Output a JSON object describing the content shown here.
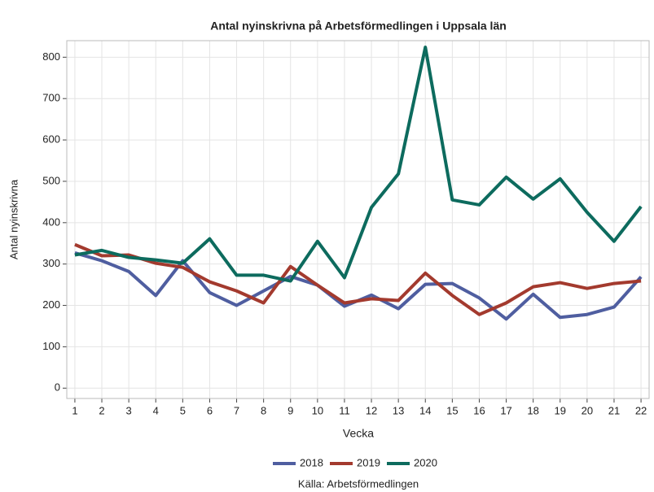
{
  "chart_data": {
    "type": "line",
    "title": "Antal nyinskrivna på Arbetsförmedlingen i Uppsala län",
    "x_label": "Vecka",
    "y_label": "Antal nyinskrivna",
    "source": "Källa: Arbetsförmedlingen",
    "x": [
      1,
      2,
      3,
      4,
      5,
      6,
      7,
      8,
      9,
      10,
      11,
      12,
      13,
      14,
      15,
      16,
      17,
      18,
      19,
      20,
      21,
      22
    ],
    "series": [
      {
        "name": "2018",
        "color": "#4f5ea0",
        "values": [
          327,
          308,
          282,
          224,
          308,
          231,
          200,
          235,
          270,
          249,
          198,
          225,
          192,
          251,
          253,
          218,
          167,
          227,
          171,
          178,
          196,
          269
        ]
      },
      {
        "name": "2019",
        "color": "#a33a2e",
        "values": [
          347,
          320,
          322,
          302,
          292,
          257,
          235,
          206,
          294,
          249,
          206,
          216,
          212,
          278,
          224,
          178,
          206,
          245,
          255,
          241,
          253,
          259
        ]
      },
      {
        "name": "2020",
        "color": "#0d6b5e",
        "values": [
          322,
          333,
          316,
          310,
          302,
          361,
          273,
          273,
          259,
          355,
          267,
          437,
          518,
          824,
          455,
          443,
          510,
          457,
          506,
          425,
          355,
          439
        ]
      }
    ],
    "xlim": [
      0.7,
      22.3
    ],
    "xticks": [
      1,
      2,
      3,
      4,
      5,
      6,
      7,
      8,
      9,
      10,
      11,
      12,
      13,
      14,
      15,
      16,
      17,
      18,
      19,
      20,
      21,
      22
    ],
    "ylim": [
      -25,
      840
    ],
    "yticks": [
      0,
      100,
      200,
      300,
      400,
      500,
      600,
      700,
      800
    ],
    "grid": true,
    "legend": "bottom"
  }
}
